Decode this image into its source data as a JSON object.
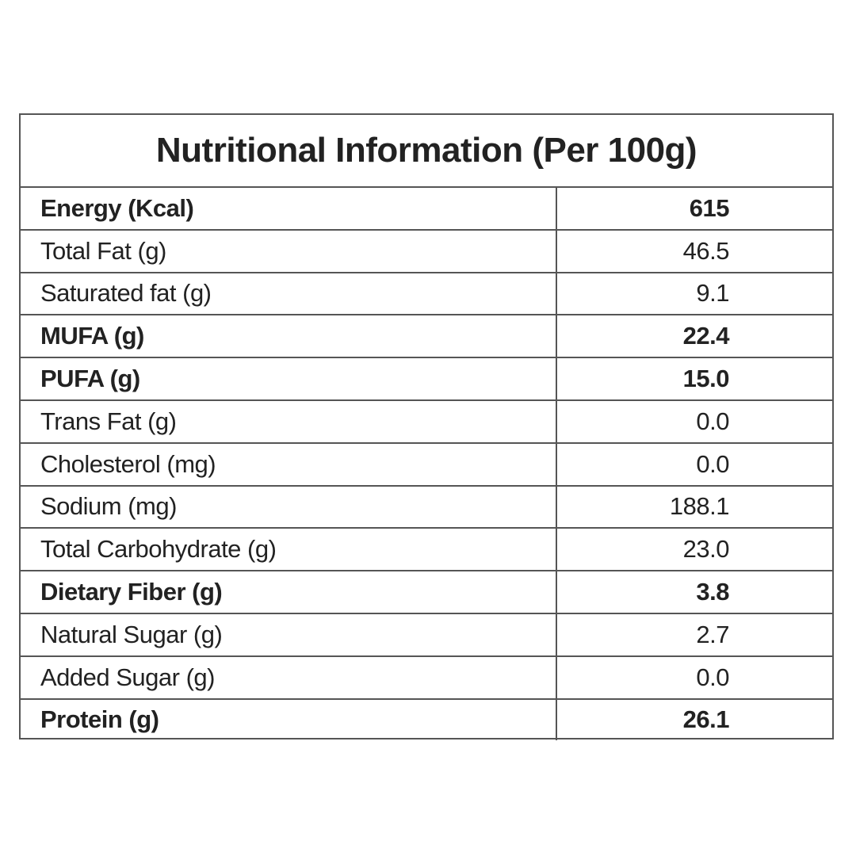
{
  "table": {
    "title": "Nutritional Information (Per 100g)",
    "rows": [
      {
        "label": "Energy (Kcal)",
        "value": "615",
        "bold": true
      },
      {
        "label": "Total Fat (g)",
        "value": "46.5",
        "bold": false
      },
      {
        "label": "Saturated fat (g)",
        "value": "9.1",
        "bold": false
      },
      {
        "label": "MUFA (g)",
        "value": "22.4",
        "bold": true
      },
      {
        "label": "PUFA (g)",
        "value": "15.0",
        "bold": true
      },
      {
        "label": "Trans Fat (g)",
        "value": "0.0",
        "bold": false
      },
      {
        "label": "Cholesterol (mg)",
        "value": "0.0",
        "bold": false
      },
      {
        "label": "Sodium (mg)",
        "value": "188.1",
        "bold": false
      },
      {
        "label": "Total Carbohydrate (g)",
        "value": "23.0",
        "bold": false
      },
      {
        "label": "Dietary Fiber (g)",
        "value": "3.8",
        "bold": true
      },
      {
        "label": "Natural Sugar (g)",
        "value": "2.7",
        "bold": false
      },
      {
        "label": "Added Sugar (g)",
        "value": "0.0",
        "bold": false
      },
      {
        "label": "Protein (g)",
        "value": "26.1",
        "bold": true
      }
    ]
  }
}
